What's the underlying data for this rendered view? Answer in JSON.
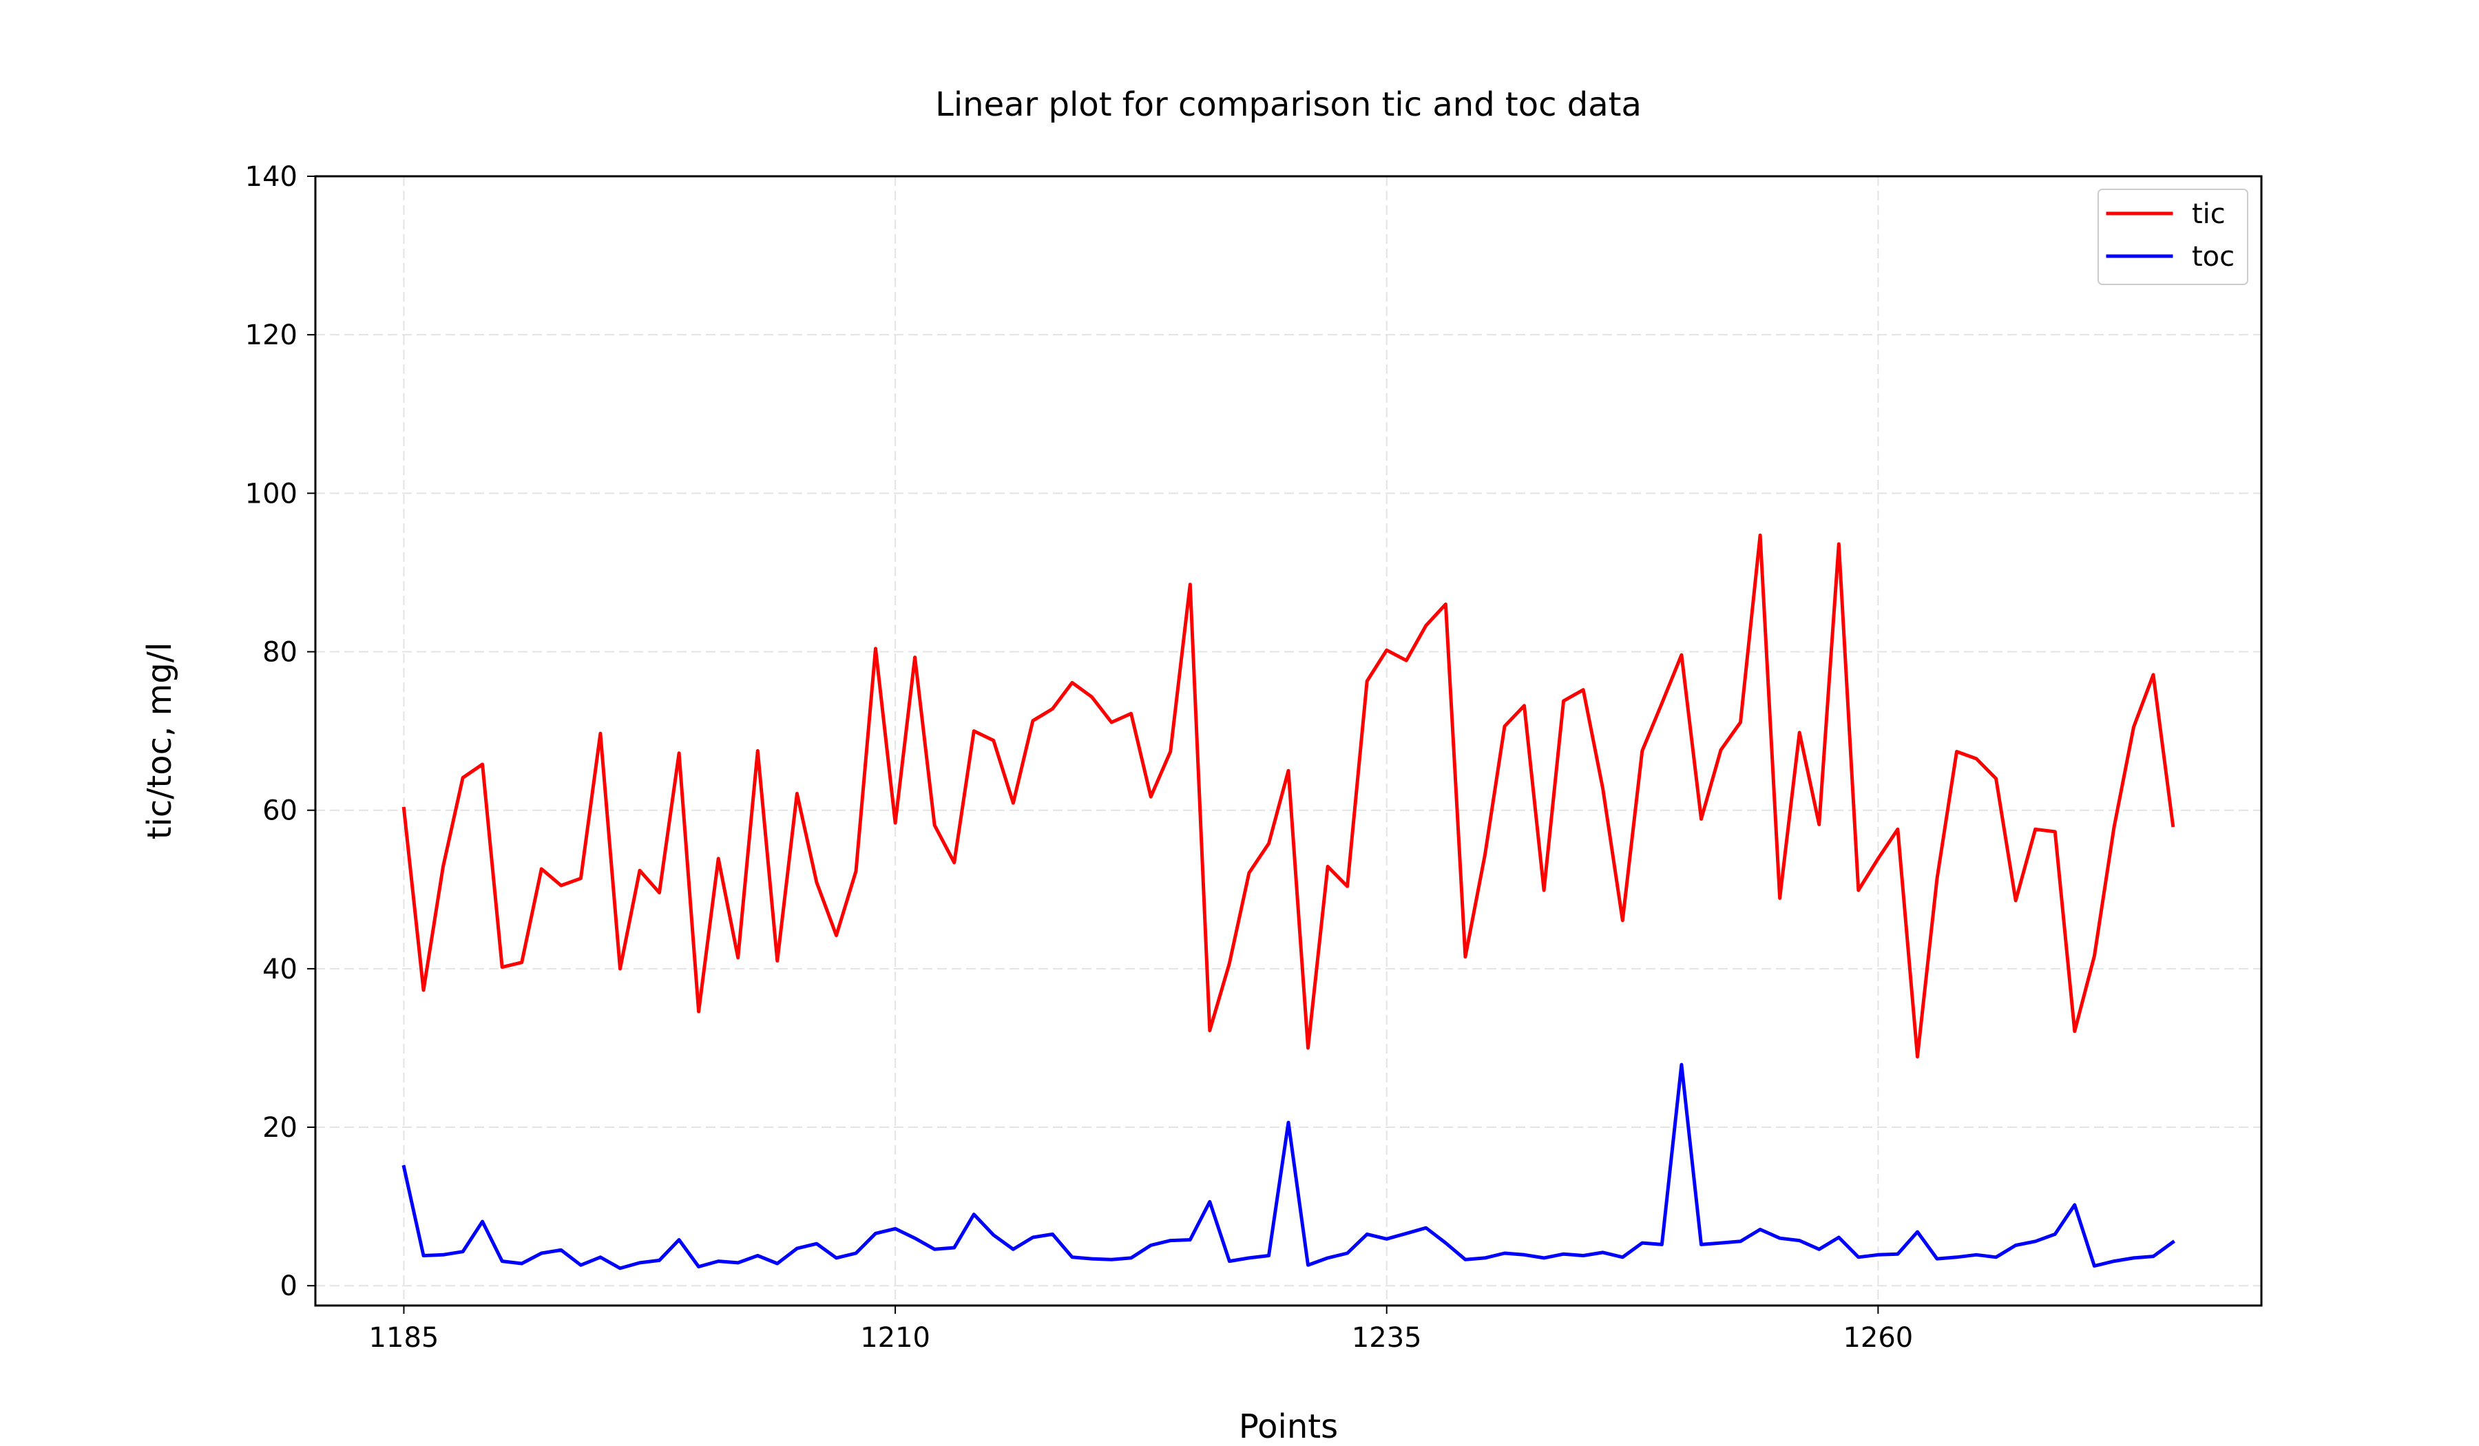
{
  "chart_data": {
    "type": "line",
    "title": "Linear plot for comparison tic and toc data",
    "xlabel": "Points",
    "ylabel": "tic/toc, mg/l",
    "xlim": [
      1180.5,
      1279.5
    ],
    "ylim": [
      -2.5,
      140
    ],
    "xticks": [
      1185,
      1210,
      1235,
      1260
    ],
    "yticks": [
      0,
      20,
      40,
      60,
      80,
      100,
      120,
      140
    ],
    "grid": true,
    "legend_position": "upper-right",
    "x": [
      1185,
      1186,
      1187,
      1188,
      1189,
      1190,
      1191,
      1192,
      1193,
      1194,
      1195,
      1196,
      1197,
      1198,
      1199,
      1200,
      1201,
      1202,
      1203,
      1204,
      1205,
      1206,
      1207,
      1208,
      1209,
      1210,
      1211,
      1212,
      1213,
      1214,
      1215,
      1216,
      1217,
      1218,
      1219,
      1220,
      1221,
      1222,
      1223,
      1224,
      1225,
      1226,
      1227,
      1228,
      1229,
      1230,
      1231,
      1232,
      1233,
      1234,
      1235,
      1236,
      1237,
      1238,
      1239,
      1240,
      1241,
      1242,
      1243,
      1244,
      1245,
      1246,
      1247,
      1248,
      1249,
      1250,
      1251,
      1252,
      1253,
      1254,
      1255,
      1256,
      1257,
      1258,
      1259,
      1260,
      1261,
      1262,
      1263,
      1264,
      1265,
      1266,
      1267,
      1268,
      1269,
      1270,
      1271,
      1272,
      1273,
      1274,
      1275
    ],
    "series": [
      {
        "name": "tic",
        "color": "#ff0000",
        "values": [
          60.2,
          37.3,
          52.9,
          64.1,
          65.8,
          40.2,
          40.8,
          52.6,
          50.5,
          51.4,
          69.7,
          40.0,
          52.4,
          49.6,
          67.2,
          34.6,
          53.9,
          41.4,
          67.5,
          41.0,
          62.1,
          50.9,
          44.2,
          52.3,
          80.4,
          58.4,
          79.3,
          58.1,
          53.4,
          70.0,
          68.8,
          60.9,
          71.3,
          72.8,
          76.1,
          74.3,
          71.1,
          72.2,
          61.7,
          67.4,
          88.5,
          32.2,
          40.7,
          52.1,
          55.8,
          65.0,
          30.0,
          52.9,
          50.4,
          76.3,
          80.2,
          78.9,
          83.3,
          86.0,
          41.5,
          54.4,
          70.6,
          73.2,
          49.9,
          73.8,
          75.2,
          62.7,
          46.1,
          67.5,
          73.5,
          79.6,
          58.9,
          67.6,
          71.1,
          94.7,
          48.9,
          69.8,
          58.2,
          93.6,
          49.9,
          53.9,
          57.6,
          28.9,
          51.4,
          67.4,
          66.5,
          64.0,
          48.6,
          57.6,
          57.3,
          32.1,
          41.6,
          57.8,
          70.5,
          77.1,
          58.1
        ]
      },
      {
        "name": "toc",
        "color": "#0000ff",
        "values": [
          15.0,
          3.8,
          3.9,
          4.3,
          8.1,
          3.1,
          2.8,
          4.1,
          4.5,
          2.6,
          3.6,
          2.2,
          2.9,
          3.2,
          5.8,
          2.4,
          3.1,
          2.9,
          3.8,
          2.8,
          4.7,
          5.3,
          3.5,
          4.1,
          6.6,
          7.2,
          6.0,
          4.6,
          4.8,
          9.0,
          6.4,
          4.6,
          6.1,
          6.5,
          3.6,
          3.4,
          3.3,
          3.5,
          5.1,
          5.7,
          5.8,
          10.6,
          3.1,
          3.5,
          3.8,
          20.6,
          2.6,
          3.5,
          4.1,
          6.5,
          5.9,
          6.6,
          7.3,
          5.4,
          3.3,
          3.5,
          4.1,
          3.9,
          3.5,
          4.0,
          3.8,
          4.2,
          3.6,
          5.4,
          5.2,
          27.9,
          5.2,
          5.4,
          5.6,
          7.1,
          6.0,
          5.7,
          4.6,
          6.1,
          3.6,
          3.9,
          4.0,
          6.8,
          3.4,
          3.6,
          3.9,
          3.6,
          5.1,
          5.6,
          6.5,
          10.2,
          2.5,
          3.1,
          3.5,
          3.7,
          5.5
        ]
      }
    ]
  }
}
